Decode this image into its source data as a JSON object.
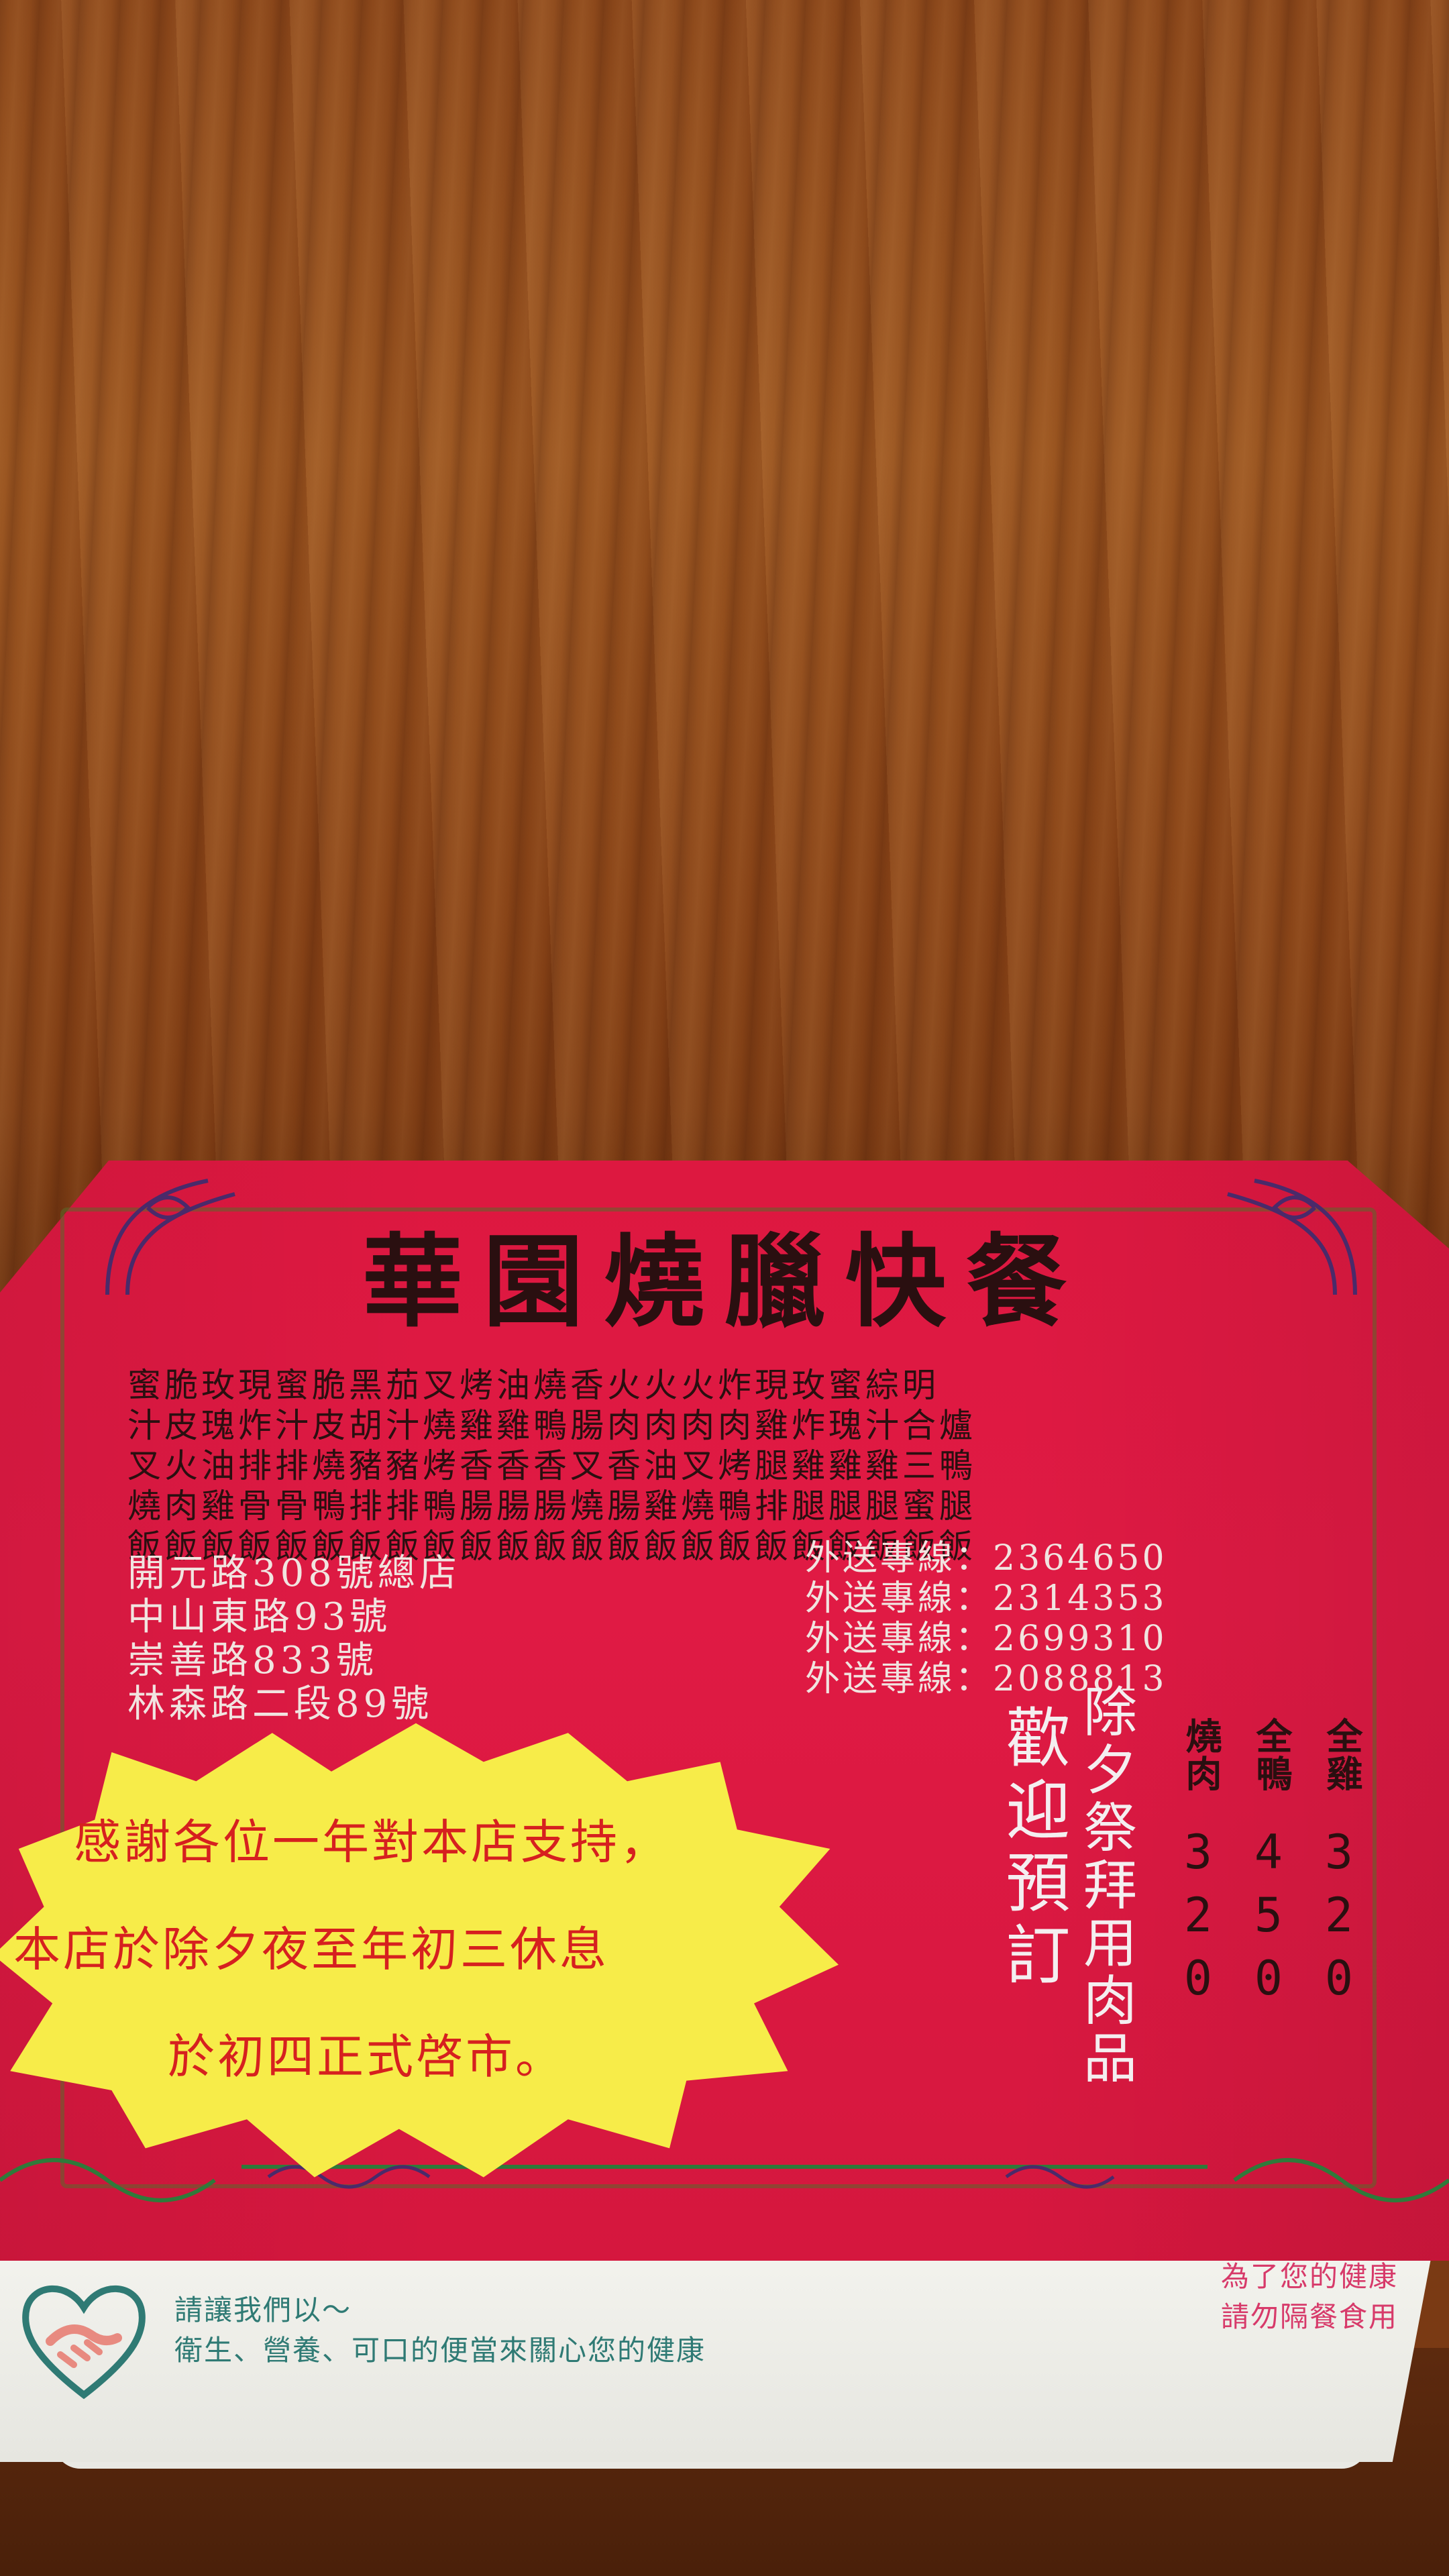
{
  "title": "華園燒臘快餐",
  "menu_rows": [
    "蜜脆玫現蜜脆黑茄叉烤油燒香火火火炸現玫蜜綜明",
    "汁皮瑰炸汁皮胡汁燒雞雞鴨腸肉肉肉肉雞炸瑰汁合爐",
    "叉火油排排燒豬豬烤香香香叉香油叉烤腿雞雞雞三鴨",
    "燒肉雞骨骨鴨排排鴨腸腸腸燒腸雞燒鴨排腿腿腿蜜腿",
    "飯飯飯飯飯飯飯飯飯飯飯飯飯飯飯飯飯飯飯飯飯飯飯"
  ],
  "addresses": [
    "開元路308號總店",
    "中山東路93號",
    "崇善路833號",
    "林森路二段89號"
  ],
  "phones": [
    "外送專線：2364650",
    "外送專線：2314353",
    "外送專線：2699310",
    "外送專線：2088813"
  ],
  "notice": [
    "感謝各位一年對本店支持，",
    "本店於除夕夜至年初三休息",
    "於初四正式啓市。"
  ],
  "welcome": "歡迎預訂",
  "offering": "除夕祭拜用肉品",
  "prices": [
    {
      "name": "燒肉",
      "digits": "320"
    },
    {
      "name": "全鴨",
      "digits": "450"
    },
    {
      "name": "全雞",
      "digits": "320"
    }
  ],
  "strip_left": [
    "請讓我們以～",
    "衛生、營養、可口的便當來關心您的健康"
  ],
  "strip_right": [
    "為了您的健康",
    "請勿隔餐食用"
  ],
  "colors": {
    "box_red": "#dd1840",
    "notice_yellow": "#f7ec49",
    "text_dark": "#2a0f10",
    "strip_teal": "#2f7a74"
  }
}
